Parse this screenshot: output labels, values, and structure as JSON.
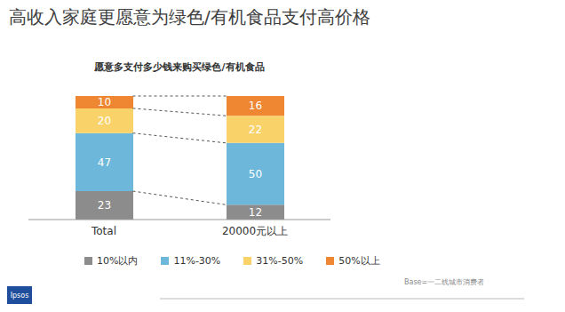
{
  "chart_data": {
    "type": "bar",
    "title": "高收入家庭更愿意为绿色/有机食品支付高价格",
    "subtitle": "愿意多支付多少钱来购买绿色/有机食品",
    "categories": [
      "Total",
      "20000元以上"
    ],
    "series": [
      {
        "name": "10%以内",
        "color": "#8c8c8c",
        "values": [
          23,
          12
        ]
      },
      {
        "name": "11%-30%",
        "color": "#6db8da",
        "values": [
          47,
          50
        ]
      },
      {
        "name": "31%-50%",
        "color": "#f9d36a",
        "values": [
          20,
          22
        ]
      },
      {
        "name": "50%以上",
        "color": "#ef8732",
        "values": [
          10,
          16
        ]
      }
    ],
    "ylim": [
      0,
      100
    ],
    "stacked": true,
    "data_labels": true,
    "tick_labels": "x",
    "grid": false,
    "legend": "bottom",
    "note": "Base=一二线城市消费者",
    "logo": "Ipsos"
  }
}
